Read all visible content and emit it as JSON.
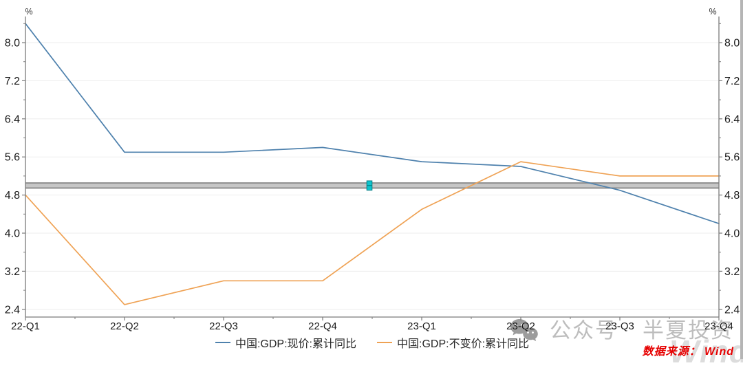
{
  "chart_data": {
    "type": "line",
    "title": "",
    "categories": [
      "22-Q1",
      "22-Q2",
      "22-Q3",
      "22-Q4",
      "23-Q1",
      "23-Q2",
      "23-Q3",
      "23-Q4"
    ],
    "series": [
      {
        "name": "中国:GDP:现价:累计同比",
        "color": "#4e81ad",
        "values": [
          8.4,
          5.7,
          5.7,
          5.8,
          5.5,
          5.4,
          4.9,
          4.2
        ]
      },
      {
        "name": "中国:GDP:不变价:累计同比",
        "color": "#efa254",
        "values": [
          4.8,
          2.5,
          3.0,
          3.0,
          4.5,
          5.5,
          5.2,
          5.2
        ]
      }
    ],
    "annotation_line": {
      "value": 5.0,
      "band_color": "#c6c6c6",
      "edge_color": "#8e8e8e",
      "handle_color": "#0fc4cd",
      "handle_edge_color": "#037e84"
    },
    "y_axis": {
      "unit_left": "%",
      "unit_right": "%",
      "ticks": [
        8.0,
        7.2,
        6.4,
        5.6,
        4.8,
        4.0,
        3.2,
        2.4
      ],
      "minor_ticks": [
        8.4,
        7.6,
        6.8,
        6.0,
        5.2,
        4.4,
        3.6,
        2.8
      ],
      "range": [
        2.25,
        8.6
      ],
      "mirrored_right": true
    },
    "grid": true,
    "legend_position": "bottom",
    "colors": {
      "axis": "#7a7a7a",
      "grid": "#ededed",
      "tick_text": "#1a1a1a"
    }
  },
  "watermark": {
    "wechat_label": "公众号",
    "brand": "半夏投资",
    "ghost": "Wind"
  },
  "source": {
    "text": "数据来源： Wind"
  }
}
